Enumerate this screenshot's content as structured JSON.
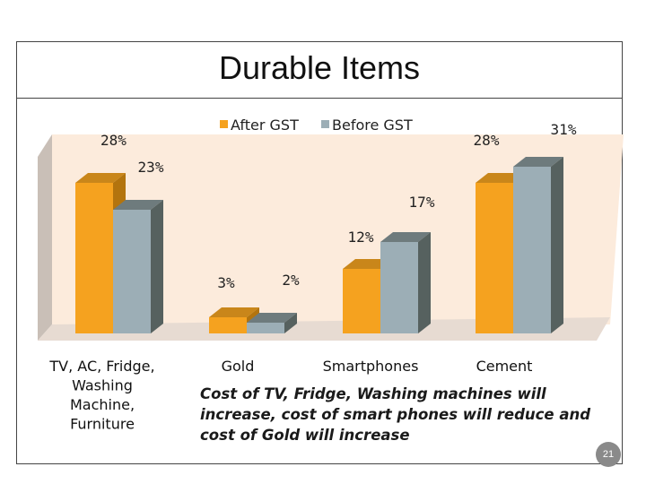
{
  "slide": {
    "title": "Durable Items",
    "note": "Cost of TV, Fridge, Washing machines will increase, cost of smart phones will reduce and cost of Gold will increase",
    "page_number": "21"
  },
  "chart_data": {
    "type": "bar",
    "categories": [
      "TV, AC, Fridge, Washing Machine, Furniture",
      "Gold",
      "Smartphones",
      "Cement"
    ],
    "category_lines": [
      [
        "TV, AC, Fridge,",
        "Washing",
        "Machine,",
        "Furniture"
      ],
      [
        "Gold"
      ],
      [
        "Smartphones"
      ],
      [
        "Cement"
      ]
    ],
    "series": [
      {
        "name": "After GST",
        "values": [
          28,
          3,
          12,
          28
        ],
        "labels": [
          "28%",
          "3%",
          "12%",
          "28%"
        ]
      },
      {
        "name": "Before GST",
        "values": [
          23,
          2,
          17,
          31
        ],
        "labels": [
          "23%",
          "2%",
          "17%",
          "31%"
        ]
      }
    ],
    "ylim": [
      0,
      31
    ],
    "grid": false,
    "legend": "top",
    "colors": {
      "After GST": "#F5A21F",
      "Before GST": "#9CAEB6"
    }
  }
}
